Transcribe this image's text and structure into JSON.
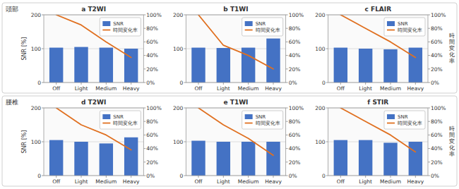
{
  "chart_data": [
    {
      "type": "bar",
      "title": "a  T2WI",
      "annotations": [
        "頭部"
      ],
      "ylabel": "SNR [%]",
      "categories": [
        "Off",
        "Light",
        "Medium",
        "Heavy"
      ],
      "series": [
        {
          "name": "SNR",
          "type": "bar",
          "color": "#4472C4",
          "values": [
            103,
            105,
            103,
            100
          ]
        },
        {
          "name": "時間変化率",
          "type": "line",
          "color": "#E07020",
          "axis": "y2",
          "values": [
            100,
            85,
            60,
            37
          ]
        }
      ],
      "ylim": [
        0,
        200
      ],
      "yticks": [
        0,
        100,
        200
      ],
      "y2lim": [
        0,
        100
      ],
      "y2ticks": [
        {
          "value": 0,
          "label": "0%"
        },
        {
          "value": 20,
          "label": "20%"
        },
        {
          "value": 40,
          "label": "40%"
        },
        {
          "value": 60,
          "label": "60%"
        },
        {
          "value": 80,
          "label": "80%"
        },
        {
          "value": 100,
          "label": "100%"
        }
      ],
      "grid": true,
      "legend": "upper right"
    },
    {
      "type": "bar",
      "title": "b  T1WI",
      "categories": [
        "Off",
        "Light",
        "Medium",
        "Heavy"
      ],
      "series": [
        {
          "name": "SNR",
          "type": "bar",
          "color": "#4472C4",
          "values": [
            103,
            102,
            103,
            130
          ]
        },
        {
          "name": "時間変化率",
          "type": "line",
          "color": "#E07020",
          "axis": "y2",
          "values": [
            100,
            55,
            40,
            20
          ]
        }
      ],
      "ylim": [
        0,
        200
      ],
      "yticks": [
        0,
        100,
        200
      ],
      "y2lim": [
        0,
        100
      ],
      "y2ticks": [
        {
          "value": 0,
          "label": "0%"
        },
        {
          "value": 20,
          "label": "20%"
        },
        {
          "value": 40,
          "label": "40%"
        },
        {
          "value": 60,
          "label": "60%"
        },
        {
          "value": 80,
          "label": "80%"
        },
        {
          "value": 100,
          "label": "100%"
        }
      ],
      "grid": true,
      "legend": "upper right"
    },
    {
      "type": "bar",
      "title": "c  FLAIR",
      "y2label": "時間変化率",
      "categories": [
        "Off",
        "Light",
        "Medium",
        "Heavy"
      ],
      "series": [
        {
          "name": "SNR",
          "type": "bar",
          "color": "#4472C4",
          "values": [
            103,
            100,
            98,
            103
          ]
        },
        {
          "name": "時間変化率",
          "type": "line",
          "color": "#E07020",
          "axis": "y2",
          "values": [
            100,
            80,
            60,
            37
          ]
        }
      ],
      "ylim": [
        0,
        200
      ],
      "yticks": [
        0,
        100,
        200
      ],
      "y2lim": [
        0,
        100
      ],
      "y2ticks": [
        {
          "value": 0,
          "label": "0%"
        },
        {
          "value": 20,
          "label": "20%"
        },
        {
          "value": 40,
          "label": "40%"
        },
        {
          "value": 60,
          "label": "60%"
        },
        {
          "value": 80,
          "label": "80%"
        },
        {
          "value": 100,
          "label": "100%"
        }
      ],
      "grid": true,
      "legend": "upper right"
    },
    {
      "type": "bar",
      "title": "d  T2WI",
      "annotations": [
        "腰椎"
      ],
      "ylabel": "SNR [%]",
      "categories": [
        "Off",
        "Light",
        "Medium",
        "Heavy"
      ],
      "series": [
        {
          "name": "SNR",
          "type": "bar",
          "color": "#4472C4",
          "values": [
            105,
            100,
            95,
            113
          ]
        },
        {
          "name": "時間変化率",
          "type": "line",
          "color": "#E07020",
          "axis": "y2",
          "values": [
            100,
            75,
            60,
            38
          ]
        }
      ],
      "ylim": [
        0,
        200
      ],
      "yticks": [
        0,
        100,
        200
      ],
      "y2lim": [
        0,
        100
      ],
      "y2ticks": [
        {
          "value": 0,
          "label": "0%"
        },
        {
          "value": 20,
          "label": "20%"
        },
        {
          "value": 40,
          "label": "40%"
        },
        {
          "value": 60,
          "label": "60%"
        },
        {
          "value": 80,
          "label": "80%"
        },
        {
          "value": 100,
          "label": "100%"
        }
      ],
      "grid": true,
      "legend": "upper right"
    },
    {
      "type": "bar",
      "title": "e  T1WI",
      "categories": [
        "Off",
        "Light",
        "Medium",
        "Heavy"
      ],
      "series": [
        {
          "name": "SNR",
          "type": "bar",
          "color": "#4472C4",
          "values": [
            103,
            100,
            100,
            100
          ]
        },
        {
          "name": "時間変化率",
          "type": "line",
          "color": "#E07020",
          "axis": "y2",
          "values": [
            100,
            75,
            55,
            30
          ]
        }
      ],
      "ylim": [
        0,
        200
      ],
      "yticks": [
        0,
        100,
        200
      ],
      "y2lim": [
        0,
        100
      ],
      "y2ticks": [
        {
          "value": 0,
          "label": "0%"
        },
        {
          "value": 20,
          "label": "20%"
        },
        {
          "value": 40,
          "label": "40%"
        },
        {
          "value": 60,
          "label": "60%"
        },
        {
          "value": 80,
          "label": "80%"
        },
        {
          "value": 100,
          "label": "100%"
        }
      ],
      "grid": true,
      "legend": "upper right"
    },
    {
      "type": "bar",
      "title": "f  STIR",
      "y2label": "時間変化率",
      "categories": [
        "Off",
        "Light",
        "Medium",
        "Heavy"
      ],
      "series": [
        {
          "name": "SNR",
          "type": "bar",
          "color": "#4472C4",
          "values": [
            105,
            105,
            97,
            100
          ]
        },
        {
          "name": "時間変化率",
          "type": "line",
          "color": "#E07020",
          "axis": "y2",
          "values": [
            100,
            80,
            60,
            35
          ]
        }
      ],
      "ylim": [
        0,
        200
      ],
      "yticks": [
        0,
        100,
        200
      ],
      "y2lim": [
        0,
        100
      ],
      "y2ticks": [
        {
          "value": 0,
          "label": "0%"
        },
        {
          "value": 20,
          "label": "20%"
        },
        {
          "value": 40,
          "label": "40%"
        },
        {
          "value": 60,
          "label": "60%"
        },
        {
          "value": 80,
          "label": "80%"
        },
        {
          "value": 100,
          "label": "100%"
        }
      ],
      "grid": true,
      "legend": "upper right"
    }
  ]
}
